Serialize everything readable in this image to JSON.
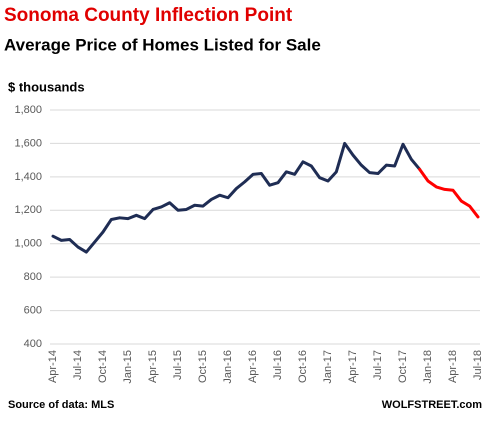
{
  "chart_data": {
    "type": "line",
    "title": "Sonoma County Inflection Point",
    "subtitle": "Average Price of Homes Listed for Sale",
    "y_label": "$ thousands",
    "source": "Source of data: MLS",
    "credit": "WOLFSTREET.com",
    "categories": [
      "Apr-14",
      null,
      null,
      "Jul-14",
      null,
      null,
      "Oct-14",
      null,
      null,
      "Jan-15",
      null,
      null,
      "Apr-15",
      null,
      null,
      "Jul-15",
      null,
      null,
      "Oct-15",
      null,
      null,
      "Jan-16",
      null,
      null,
      "Apr-16",
      null,
      null,
      "Jul-16",
      null,
      null,
      "Oct-16",
      null,
      null,
      "Jan-17",
      null,
      null,
      "Apr-17",
      null,
      null,
      "Jul-17",
      null,
      null,
      "Oct-17",
      null,
      null,
      "Jan-18",
      null,
      null,
      "Apr-18",
      null,
      null,
      "Jul-18"
    ],
    "series": [
      {
        "color": "#1f2d54",
        "values": [
          1045,
          1020,
          1025,
          980,
          950,
          1010,
          1070,
          1145,
          1155,
          1150,
          1170,
          1150,
          1205,
          1220,
          1245,
          1200,
          1205,
          1230,
          1225,
          1265,
          1290,
          1275,
          1330,
          1370,
          1415,
          1420,
          1350,
          1365,
          1430,
          1415,
          1490,
          1465,
          1395,
          1375,
          1430,
          1600,
          1530,
          1470,
          1425,
          1420,
          1470,
          1465,
          1595,
          1505,
          1445,
          null,
          null,
          null,
          null,
          null,
          null,
          null
        ]
      },
      {
        "color": "#ff0000",
        "values": [
          null,
          null,
          null,
          null,
          null,
          null,
          null,
          null,
          null,
          null,
          null,
          null,
          null,
          null,
          null,
          null,
          null,
          null,
          null,
          null,
          null,
          null,
          null,
          null,
          null,
          null,
          null,
          null,
          null,
          null,
          null,
          null,
          null,
          null,
          null,
          null,
          null,
          null,
          null,
          null,
          null,
          null,
          null,
          null,
          1445,
          1375,
          1340,
          1325,
          1320,
          1255,
          1225,
          1160
        ]
      }
    ],
    "ylim": [
      400,
      1800
    ],
    "yticks": [
      400,
      600,
      800,
      {
        "value": 1000,
        "label": "1,000"
      },
      {
        "value": 1200,
        "label": "1,200"
      },
      {
        "value": 1400,
        "label": "1,400"
      },
      {
        "value": 1600,
        "label": "1,600"
      },
      {
        "value": 1800,
        "label": "1,800"
      }
    ],
    "grid": true
  }
}
